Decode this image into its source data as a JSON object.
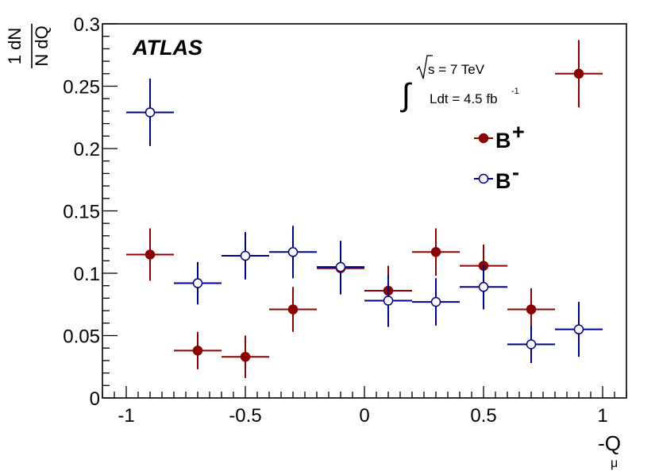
{
  "chart_data": {
    "type": "scatter",
    "title": "",
    "experiment": "ATLAS",
    "annotation": {
      "energy_s": "s",
      "energy_rest": " = 7 TeV",
      "lumi_prefix": "Ldt = 4.5 fb",
      "lumi_exp": "-1"
    },
    "xlabel": "-Q",
    "xlabel_sub": "μ",
    "ylabel": {
      "num": "1 dN",
      "den": "N dQ"
    },
    "xlim": [
      -1.1,
      1.1
    ],
    "ylim": [
      0,
      0.3
    ],
    "xticks": [
      -1,
      -0.5,
      0,
      0.5,
      1
    ],
    "xtick_labels": [
      "-1",
      "-0.5",
      "0",
      "0.5",
      "1"
    ],
    "yticks": [
      0,
      0.05,
      0.1,
      0.15,
      0.2,
      0.25,
      0.3
    ],
    "ytick_labels": [
      "0",
      "0.05",
      "0.1",
      "0.15",
      "0.2",
      "0.25",
      "0.3"
    ],
    "legend_position": "top-right",
    "series": [
      {
        "name": "B",
        "sup": "+",
        "color": "#8b0000",
        "marker": "filled-circle",
        "x": [
          -0.9,
          -0.7,
          -0.5,
          -0.3,
          -0.1,
          0.1,
          0.3,
          0.5,
          0.7,
          0.9
        ],
        "xerr": 0.1,
        "y": [
          0.115,
          0.038,
          0.033,
          0.071,
          0.104,
          0.086,
          0.117,
          0.106,
          0.071,
          0.26
        ],
        "yerr": [
          0.021,
          0.015,
          0.017,
          0.018,
          0.021,
          0.02,
          0.019,
          0.017,
          0.017,
          0.027
        ]
      },
      {
        "name": "B",
        "sup": "-",
        "color": "#00008b",
        "marker": "open-circle",
        "x": [
          -0.9,
          -0.7,
          -0.5,
          -0.3,
          -0.1,
          0.1,
          0.3,
          0.5,
          0.7,
          0.9
        ],
        "xerr": 0.1,
        "y": [
          0.229,
          0.092,
          0.114,
          0.117,
          0.105,
          0.078,
          0.077,
          0.089,
          0.043,
          0.055
        ],
        "yerr": [
          0.027,
          0.017,
          0.019,
          0.021,
          0.021,
          0.021,
          0.019,
          0.018,
          0.015,
          0.022
        ]
      }
    ]
  }
}
